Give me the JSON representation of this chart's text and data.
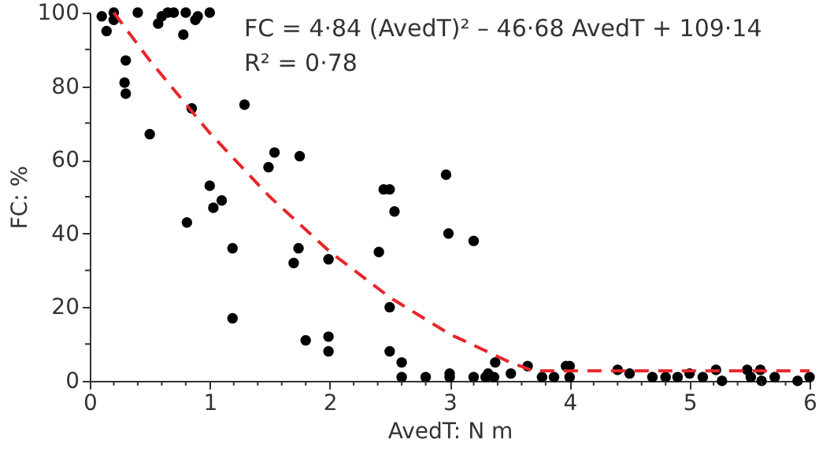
{
  "chart_data": {
    "type": "scatter",
    "xlabel": "AvedT: N m",
    "ylabel": "FC: %",
    "annotations": [
      "FC = 4·84 (AvedT)² – 46·68 AvedT + 109·14",
      "R² = 0·78"
    ],
    "xlim": [
      0,
      6
    ],
    "ylim": [
      0,
      100
    ],
    "xticks": [
      0,
      {
        "value": 0.2,
        "label": null
      },
      {
        "value": 0.4,
        "label": null
      },
      {
        "value": 0.6,
        "label": null
      },
      {
        "value": 0.8,
        "label": null
      },
      1,
      {
        "value": 1.2,
        "label": null
      },
      {
        "value": 1.4,
        "label": null
      },
      {
        "value": 1.6,
        "label": null
      },
      {
        "value": 1.8,
        "label": null
      },
      2,
      {
        "value": 2.2,
        "label": null
      },
      {
        "value": 2.4,
        "label": null
      },
      {
        "value": 2.6,
        "label": null
      },
      {
        "value": 2.8,
        "label": null
      },
      3,
      {
        "value": 3.2,
        "label": null
      },
      {
        "value": 3.4,
        "label": null
      },
      {
        "value": 3.6,
        "label": null
      },
      {
        "value": 3.8,
        "label": null
      },
      4,
      {
        "value": 4.2,
        "label": null
      },
      {
        "value": 4.4,
        "label": null
      },
      {
        "value": 4.6,
        "label": null
      },
      {
        "value": 4.8,
        "label": null
      },
      5,
      {
        "value": 5.2,
        "label": null
      },
      {
        "value": 5.4,
        "label": null
      },
      {
        "value": 5.6,
        "label": null
      },
      {
        "value": 5.8,
        "label": null
      },
      6
    ],
    "yticks": [
      0,
      {
        "value": 10,
        "label": null
      },
      20,
      {
        "value": 30,
        "label": null
      },
      40,
      {
        "value": 50,
        "label": null
      },
      60,
      {
        "value": 70,
        "label": null
      },
      80,
      {
        "value": 90,
        "label": null
      },
      100
    ],
    "grid": false,
    "series": [
      {
        "type": "scatter",
        "color": "#000000",
        "marker": "circle",
        "x": [
          0.1,
          0.14,
          0.2,
          0.2,
          0.4,
          0.57,
          0.6,
          0.65,
          0.7,
          0.78,
          0.8,
          0.88,
          0.9,
          1.0,
          0.3,
          0.29,
          0.3,
          0.85,
          1.29,
          0.5,
          1.49,
          1.54,
          1.75,
          1.0,
          1.1,
          1.03,
          0.81,
          1.19,
          1.74,
          1.7,
          1.99,
          1.19,
          1.8,
          1.99,
          1.99,
          2.97,
          2.45,
          2.5,
          2.54,
          2.99,
          3.2,
          2.41,
          2.5,
          2.5,
          2.6,
          2.6,
          2.8,
          3.0,
          3.0,
          3.2,
          3.32,
          3.3,
          3.38,
          3.37,
          3.51,
          3.65,
          3.77,
          3.87,
          3.97,
          4.0,
          4.0,
          4.4,
          4.5,
          4.69,
          4.8,
          4.9,
          5.0,
          5.11,
          5.22,
          5.27,
          5.48,
          5.51,
          5.59,
          5.6,
          5.71,
          5.9,
          6.0
        ],
        "values": [
          99,
          95,
          100,
          98,
          100,
          97,
          99,
          100,
          100,
          94,
          100,
          98,
          99,
          100,
          87,
          81,
          78,
          74,
          75,
          67,
          58,
          62,
          61,
          53,
          49,
          47,
          43,
          36,
          36,
          32,
          33,
          17,
          11,
          12,
          8,
          56,
          52,
          52,
          46,
          40,
          38,
          35,
          20,
          8,
          5,
          1,
          1,
          2,
          1,
          1,
          2,
          1,
          5,
          1,
          2,
          4,
          1,
          1,
          4,
          4,
          1,
          3,
          2,
          1,
          1,
          1,
          2,
          1,
          3,
          0,
          3,
          1,
          3,
          0,
          1,
          0,
          1
        ]
      },
      {
        "type": "line",
        "color": "#e8262a",
        "marker": "none",
        "line_style": "dashed",
        "x": [
          0.2,
          0.5,
          1.0,
          1.5,
          2.0,
          2.5,
          3.0,
          3.5,
          3.7,
          6.0
        ],
        "values": [
          100,
          87,
          67.3,
          50,
          35.1,
          22.7,
          12.7,
          5.1,
          2.7,
          2.7
        ]
      }
    ]
  }
}
